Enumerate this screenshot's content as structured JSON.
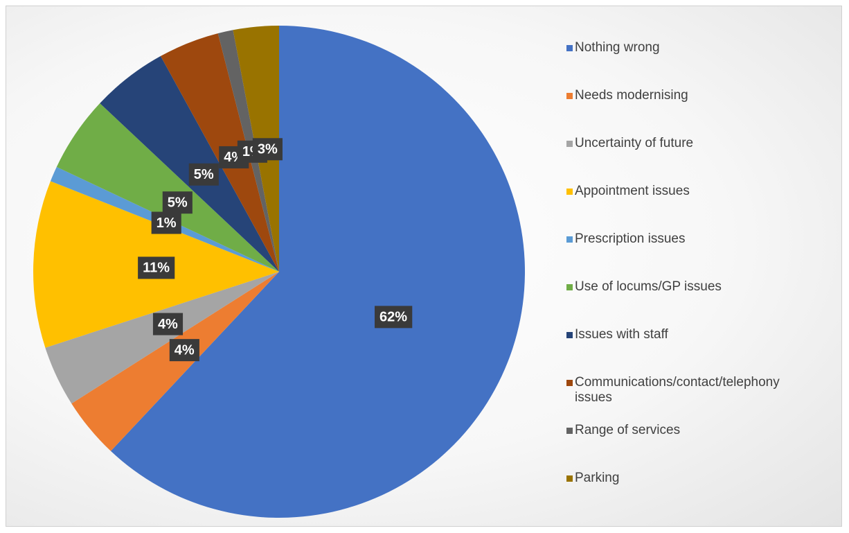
{
  "chart_data": {
    "type": "pie",
    "categories": [
      "Nothing wrong",
      "Needs modernising",
      "Uncertainty of future",
      "Appointment issues",
      "Prescription issues",
      "Use of locums/GP issues",
      "Issues with staff",
      "Communications/contact/telephony issues",
      "Range of services",
      "Parking"
    ],
    "values": [
      62,
      4,
      4,
      11,
      1,
      5,
      5,
      4,
      1,
      3
    ],
    "value_labels": [
      "62%",
      "4%",
      "4%",
      "11%",
      "1%",
      "5%",
      "5%",
      "4%",
      "1%",
      "3%"
    ],
    "colors": [
      "#4472c4",
      "#ed7d31",
      "#a5a5a5",
      "#ffc000",
      "#5b9bd5",
      "#70ad47",
      "#264478",
      "#9e480e",
      "#636363",
      "#997300"
    ],
    "legend": "right"
  }
}
